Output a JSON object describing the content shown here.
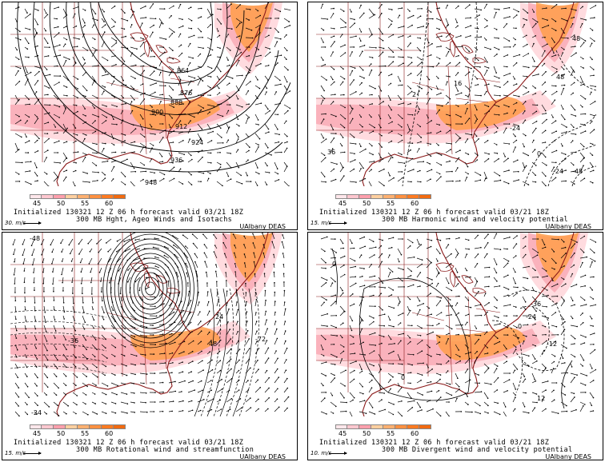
{
  "colorbar": {
    "labels": [
      "45",
      "50",
      "55",
      "60"
    ],
    "colors": [
      "#ffe6ea",
      "#ffc7cf",
      "#ff9fac",
      "#ffcf9f",
      "#ffb070",
      "#ff9040",
      "#ff7a20",
      "#f26a10"
    ]
  },
  "colors": {
    "coast": "#8b1a1a",
    "fill_light": "#ffd7dc",
    "fill_pink": "#f9a7b3",
    "fill_orange": "#ff9e4a"
  },
  "panels": [
    {
      "line1": "Initialized 130321 12 Z  06 h forecast valid 03/21 18Z",
      "line2": "300 MB Hght, Ageo Winds and Isotachs",
      "vector_ref": "30. m/s",
      "credit": "UAlbany DEAS",
      "contour_labels": [
        "864",
        "876",
        "888",
        "900",
        "912",
        "924",
        "936",
        "948"
      ]
    },
    {
      "line1": "Initialized 130321 12 Z  06 h forecast valid 03/21 18Z",
      "line2": "300 MB Harmonic wind and velocity potential",
      "vector_ref": "15. m/s",
      "credit": "UAlbany DEAS",
      "contour_labels": [
        "48",
        "48",
        "16",
        "2",
        "-24",
        "0",
        "-24",
        "-48",
        "36"
      ]
    },
    {
      "line1": "Initialized 130321 12 Z  06 h forecast valid 03/21 18Z",
      "line2": "300 MB Rotational wind and streamfunction",
      "vector_ref": "15. m/s",
      "credit": "UAlbany DEAS",
      "contour_labels": [
        "-48",
        "24",
        "48",
        "-36",
        "-72",
        "-24"
      ]
    },
    {
      "line1": "Initialized 130321 12 Z  06 h forecast valid 03/21 18Z",
      "line2": "300 MB Divergent wind and velocity potential",
      "vector_ref": "10. m/s",
      "credit": "UAlbany DEAS",
      "contour_labels": [
        "0",
        "-36",
        "-24",
        "-12",
        "0",
        "0",
        "12"
      ]
    }
  ]
}
